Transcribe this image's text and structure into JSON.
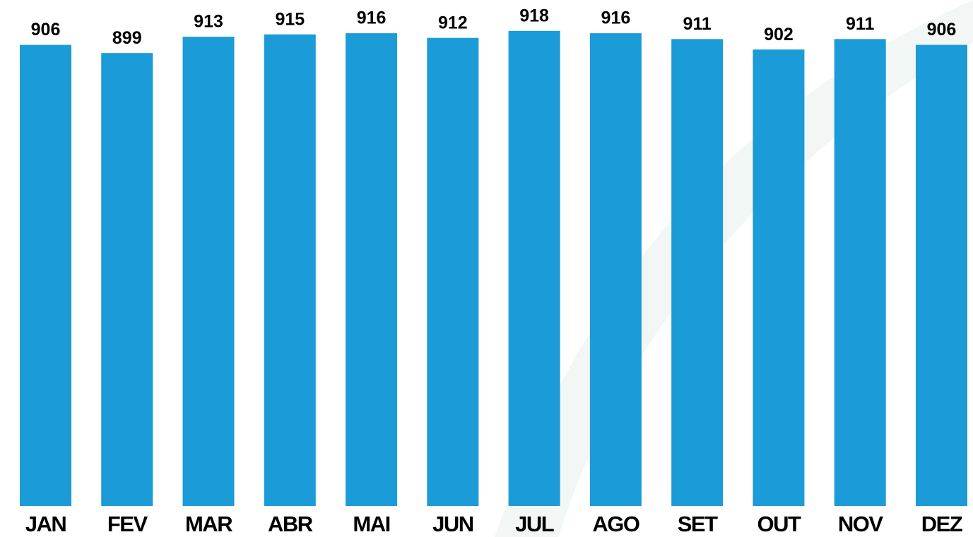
{
  "chart_data": {
    "type": "bar",
    "categories": [
      "JAN",
      "FEV",
      "MAR",
      "ABR",
      "MAI",
      "JUN",
      "JUL",
      "AGO",
      "SET",
      "OUT",
      "NOV",
      "DEZ"
    ],
    "values": [
      906,
      899,
      913,
      915,
      916,
      912,
      918,
      916,
      911,
      902,
      911,
      906
    ],
    "color": "#1b9bd8",
    "ylim": [
      510,
      920
    ]
  }
}
